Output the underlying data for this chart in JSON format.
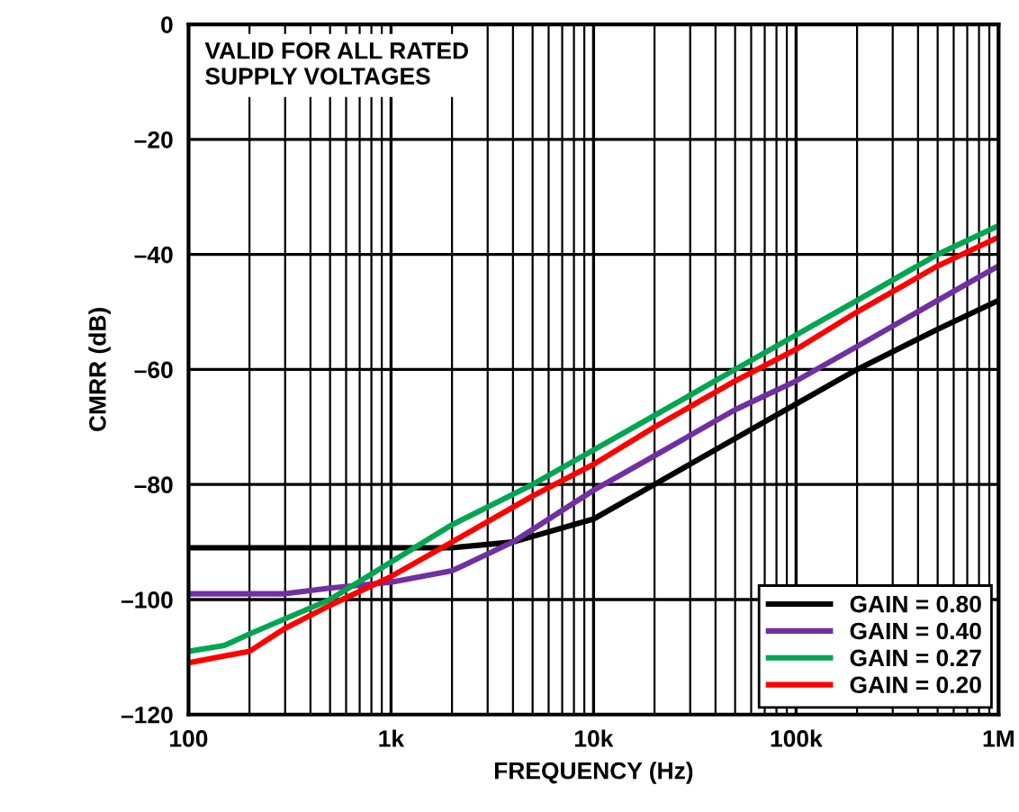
{
  "chart_data": {
    "type": "line",
    "xlabel": "FREQUENCY (Hz)",
    "ylabel": "CMRR (dB)",
    "annotations": [
      "VALID FOR ALL RATED\nSUPPLY VOLTAGES"
    ],
    "log": "x",
    "xlim": [
      100,
      1000000
    ],
    "ylim": [
      -120,
      0
    ],
    "xticks": [
      {
        "value": 100,
        "label": "100"
      },
      {
        "value": 1000,
        "label": "1k"
      },
      {
        "value": 10000,
        "label": "10k"
      },
      {
        "value": 100000,
        "label": "100k"
      },
      {
        "value": 1000000,
        "label": "1M"
      }
    ],
    "yticks": [
      {
        "value": -120,
        "label": "–120"
      },
      {
        "value": -100,
        "label": "–100"
      },
      {
        "value": -80,
        "label": "–80"
      },
      {
        "value": -60,
        "label": "–60"
      },
      {
        "value": -40,
        "label": "–40"
      },
      {
        "value": -20,
        "label": "–20"
      },
      0
    ],
    "grid": true,
    "legend": "bottom right",
    "line_style": "solid",
    "marker": "none",
    "series": [
      {
        "name": "GAIN = 0.80",
        "color": "#000000",
        "x": [
          100,
          200,
          500,
          1000,
          2000,
          4000,
          10000,
          20000,
          50000,
          100000,
          200000,
          500000,
          1000000
        ],
        "values": [
          -91,
          -91,
          -91,
          -91,
          -91,
          -90,
          -86,
          -80,
          -72,
          -66,
          -60,
          -53,
          -48
        ]
      },
      {
        "name": "GAIN = 0.40",
        "color": "#7030a0",
        "x": [
          100,
          300,
          500,
          1000,
          2000,
          4000,
          10000,
          20000,
          50000,
          100000,
          200000,
          500000,
          1000000
        ],
        "values": [
          -99,
          -99,
          -98,
          -97,
          -95,
          -90,
          -81,
          -75,
          -67,
          -62,
          -56,
          -48,
          -42
        ]
      },
      {
        "name": "GAIN = 0.27",
        "color": "#00a651",
        "x": [
          100,
          150,
          200,
          500,
          1000,
          2000,
          5000,
          10000,
          20000,
          50000,
          100000,
          200000,
          500000,
          1000000
        ],
        "values": [
          -109,
          -108,
          -106,
          -100,
          -93.5,
          -87,
          -80,
          -74,
          -68,
          -60,
          -54,
          -48,
          -40,
          -35
        ]
      },
      {
        "name": "GAIN = 0.20",
        "color": "#ff0000",
        "x": [
          100,
          200,
          300,
          500,
          1000,
          2000,
          5000,
          10000,
          20000,
          50000,
          100000,
          200000,
          500000,
          1000000
        ],
        "values": [
          -111,
          -109,
          -105,
          -101,
          -96,
          -90,
          -82,
          -76.5,
          -70,
          -62,
          -56.5,
          -50,
          -42,
          -37
        ]
      }
    ]
  }
}
